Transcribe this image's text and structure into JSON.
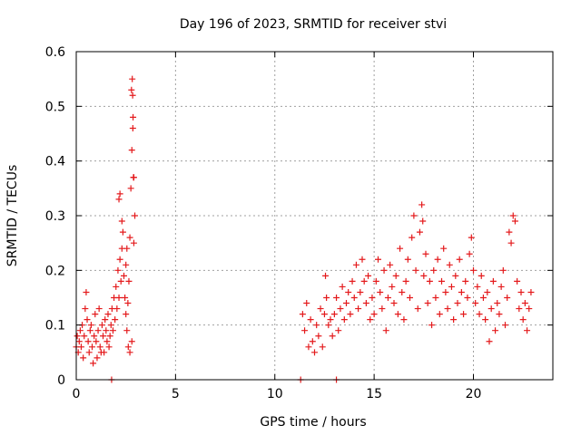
{
  "chart_data": {
    "type": "scatter",
    "title": "Day 196 of 2023, SRMTID for receiver stvi",
    "xlabel": "GPS time / hours",
    "ylabel": "SRMTID / TECUs",
    "xlim": [
      0,
      24
    ],
    "ylim": [
      0,
      0.6
    ],
    "xticks": [
      0,
      5,
      10,
      15,
      20
    ],
    "yticks": [
      0,
      0.1,
      0.2,
      0.3,
      0.4,
      0.5,
      0.6
    ],
    "xtick_labels": [
      "0",
      "5",
      "10",
      "15",
      "20"
    ],
    "ytick_labels": [
      "0",
      "0.1",
      "0.2",
      "0.3",
      "0.4",
      "0.5",
      "0.6"
    ],
    "grid": true,
    "marker": "+",
    "series": [
      {
        "name": "SRMTID",
        "color": "#e41a1c",
        "points": [
          [
            0.0,
            0.06
          ],
          [
            0.05,
            0.08
          ],
          [
            0.1,
            0.05
          ],
          [
            0.15,
            0.07
          ],
          [
            0.2,
            0.09
          ],
          [
            0.25,
            0.06
          ],
          [
            0.3,
            0.1
          ],
          [
            0.35,
            0.04
          ],
          [
            0.4,
            0.08
          ],
          [
            0.45,
            0.13
          ],
          [
            0.5,
            0.16
          ],
          [
            0.55,
            0.11
          ],
          [
            0.6,
            0.07
          ],
          [
            0.65,
            0.05
          ],
          [
            0.7,
            0.09
          ],
          [
            0.75,
            0.1
          ],
          [
            0.8,
            0.06
          ],
          [
            0.85,
            0.03
          ],
          [
            0.9,
            0.08
          ],
          [
            0.95,
            0.12
          ],
          [
            1.0,
            0.07
          ],
          [
            1.05,
            0.04
          ],
          [
            1.1,
            0.09
          ],
          [
            1.15,
            0.13
          ],
          [
            1.2,
            0.06
          ],
          [
            1.25,
            0.05
          ],
          [
            1.3,
            0.1
          ],
          [
            1.35,
            0.08
          ],
          [
            1.4,
            0.05
          ],
          [
            1.45,
            0.11
          ],
          [
            1.5,
            0.09
          ],
          [
            1.55,
            0.07
          ],
          [
            1.6,
            0.12
          ],
          [
            1.65,
            0.06
          ],
          [
            1.7,
            0.08
          ],
          [
            1.75,
            0.1
          ],
          [
            1.8,
            0.13
          ],
          [
            1.85,
            0.09
          ],
          [
            1.9,
            0.15
          ],
          [
            1.95,
            0.11
          ],
          [
            2.0,
            0.17
          ],
          [
            2.05,
            0.13
          ],
          [
            2.1,
            0.2
          ],
          [
            2.15,
            0.15
          ],
          [
            2.2,
            0.22
          ],
          [
            2.25,
            0.18
          ],
          [
            2.3,
            0.24
          ],
          [
            2.35,
            0.27
          ],
          [
            2.4,
            0.19
          ],
          [
            2.45,
            0.15
          ],
          [
            2.5,
            0.21
          ],
          [
            2.55,
            0.24
          ],
          [
            2.6,
            0.14
          ],
          [
            2.65,
            0.18
          ],
          [
            2.7,
            0.26
          ],
          [
            2.75,
            0.35
          ],
          [
            2.8,
            0.42
          ],
          [
            2.85,
            0.46
          ],
          [
            2.9,
            0.37
          ],
          [
            2.95,
            0.3
          ],
          [
            2.15,
            0.33
          ],
          [
            2.2,
            0.34
          ],
          [
            2.3,
            0.29
          ],
          [
            2.5,
            0.12
          ],
          [
            2.55,
            0.09
          ],
          [
            2.62,
            0.06
          ],
          [
            2.7,
            0.05
          ],
          [
            2.8,
            0.07
          ],
          [
            2.78,
            0.53
          ],
          [
            2.82,
            0.55
          ],
          [
            2.84,
            0.52
          ],
          [
            2.86,
            0.48
          ],
          [
            2.88,
            0.37
          ],
          [
            2.9,
            0.25
          ],
          [
            1.78,
            0.0
          ],
          [
            11.3,
            0.0
          ],
          [
            13.1,
            0.0
          ],
          [
            11.4,
            0.12
          ],
          [
            11.5,
            0.09
          ],
          [
            11.6,
            0.14
          ],
          [
            11.7,
            0.06
          ],
          [
            11.8,
            0.11
          ],
          [
            11.9,
            0.07
          ],
          [
            12.0,
            0.05
          ],
          [
            12.1,
            0.1
          ],
          [
            12.2,
            0.08
          ],
          [
            12.3,
            0.13
          ],
          [
            12.4,
            0.06
          ],
          [
            12.5,
            0.12
          ],
          [
            12.55,
            0.19
          ],
          [
            12.6,
            0.15
          ],
          [
            12.7,
            0.1
          ],
          [
            12.8,
            0.11
          ],
          [
            12.9,
            0.08
          ],
          [
            13.0,
            0.12
          ],
          [
            13.1,
            0.15
          ],
          [
            13.2,
            0.09
          ],
          [
            13.3,
            0.13
          ],
          [
            13.4,
            0.17
          ],
          [
            13.5,
            0.11
          ],
          [
            13.6,
            0.14
          ],
          [
            13.7,
            0.16
          ],
          [
            13.8,
            0.12
          ],
          [
            13.9,
            0.18
          ],
          [
            14.0,
            0.15
          ],
          [
            14.1,
            0.21
          ],
          [
            14.2,
            0.13
          ],
          [
            14.3,
            0.16
          ],
          [
            14.4,
            0.22
          ],
          [
            14.5,
            0.18
          ],
          [
            14.6,
            0.14
          ],
          [
            14.7,
            0.19
          ],
          [
            14.8,
            0.11
          ],
          [
            14.9,
            0.15
          ],
          [
            15.0,
            0.12
          ],
          [
            15.1,
            0.18
          ],
          [
            15.2,
            0.22
          ],
          [
            15.3,
            0.16
          ],
          [
            15.4,
            0.13
          ],
          [
            15.5,
            0.2
          ],
          [
            15.6,
            0.09
          ],
          [
            15.7,
            0.15
          ],
          [
            15.8,
            0.21
          ],
          [
            15.9,
            0.17
          ],
          [
            16.0,
            0.14
          ],
          [
            16.1,
            0.19
          ],
          [
            16.2,
            0.12
          ],
          [
            16.3,
            0.24
          ],
          [
            16.4,
            0.16
          ],
          [
            16.5,
            0.11
          ],
          [
            16.6,
            0.18
          ],
          [
            16.7,
            0.22
          ],
          [
            16.8,
            0.15
          ],
          [
            16.9,
            0.26
          ],
          [
            17.0,
            0.3
          ],
          [
            17.1,
            0.2
          ],
          [
            17.2,
            0.13
          ],
          [
            17.3,
            0.27
          ],
          [
            17.4,
            0.32
          ],
          [
            17.45,
            0.29
          ],
          [
            17.5,
            0.19
          ],
          [
            17.6,
            0.23
          ],
          [
            17.7,
            0.14
          ],
          [
            17.8,
            0.18
          ],
          [
            17.9,
            0.1
          ],
          [
            18.0,
            0.2
          ],
          [
            18.1,
            0.15
          ],
          [
            18.2,
            0.22
          ],
          [
            18.3,
            0.12
          ],
          [
            18.4,
            0.18
          ],
          [
            18.5,
            0.24
          ],
          [
            18.6,
            0.16
          ],
          [
            18.7,
            0.13
          ],
          [
            18.8,
            0.21
          ],
          [
            18.9,
            0.17
          ],
          [
            19.0,
            0.11
          ],
          [
            19.1,
            0.19
          ],
          [
            19.2,
            0.14
          ],
          [
            19.3,
            0.22
          ],
          [
            19.4,
            0.16
          ],
          [
            19.5,
            0.12
          ],
          [
            19.6,
            0.18
          ],
          [
            19.7,
            0.15
          ],
          [
            19.8,
            0.23
          ],
          [
            19.9,
            0.26
          ],
          [
            20.0,
            0.2
          ],
          [
            20.1,
            0.14
          ],
          [
            20.2,
            0.17
          ],
          [
            20.3,
            0.12
          ],
          [
            20.4,
            0.19
          ],
          [
            20.5,
            0.15
          ],
          [
            20.6,
            0.11
          ],
          [
            20.7,
            0.16
          ],
          [
            20.8,
            0.07
          ],
          [
            20.9,
            0.13
          ],
          [
            21.0,
            0.18
          ],
          [
            21.1,
            0.09
          ],
          [
            21.2,
            0.14
          ],
          [
            21.3,
            0.12
          ],
          [
            21.4,
            0.17
          ],
          [
            21.5,
            0.2
          ],
          [
            21.6,
            0.1
          ],
          [
            21.7,
            0.15
          ],
          [
            21.8,
            0.27
          ],
          [
            21.9,
            0.25
          ],
          [
            22.0,
            0.3
          ],
          [
            22.1,
            0.29
          ],
          [
            22.2,
            0.18
          ],
          [
            22.3,
            0.13
          ],
          [
            22.4,
            0.16
          ],
          [
            22.5,
            0.11
          ],
          [
            22.6,
            0.14
          ],
          [
            22.7,
            0.09
          ],
          [
            22.8,
            0.13
          ],
          [
            22.9,
            0.16
          ]
        ]
      }
    ]
  }
}
